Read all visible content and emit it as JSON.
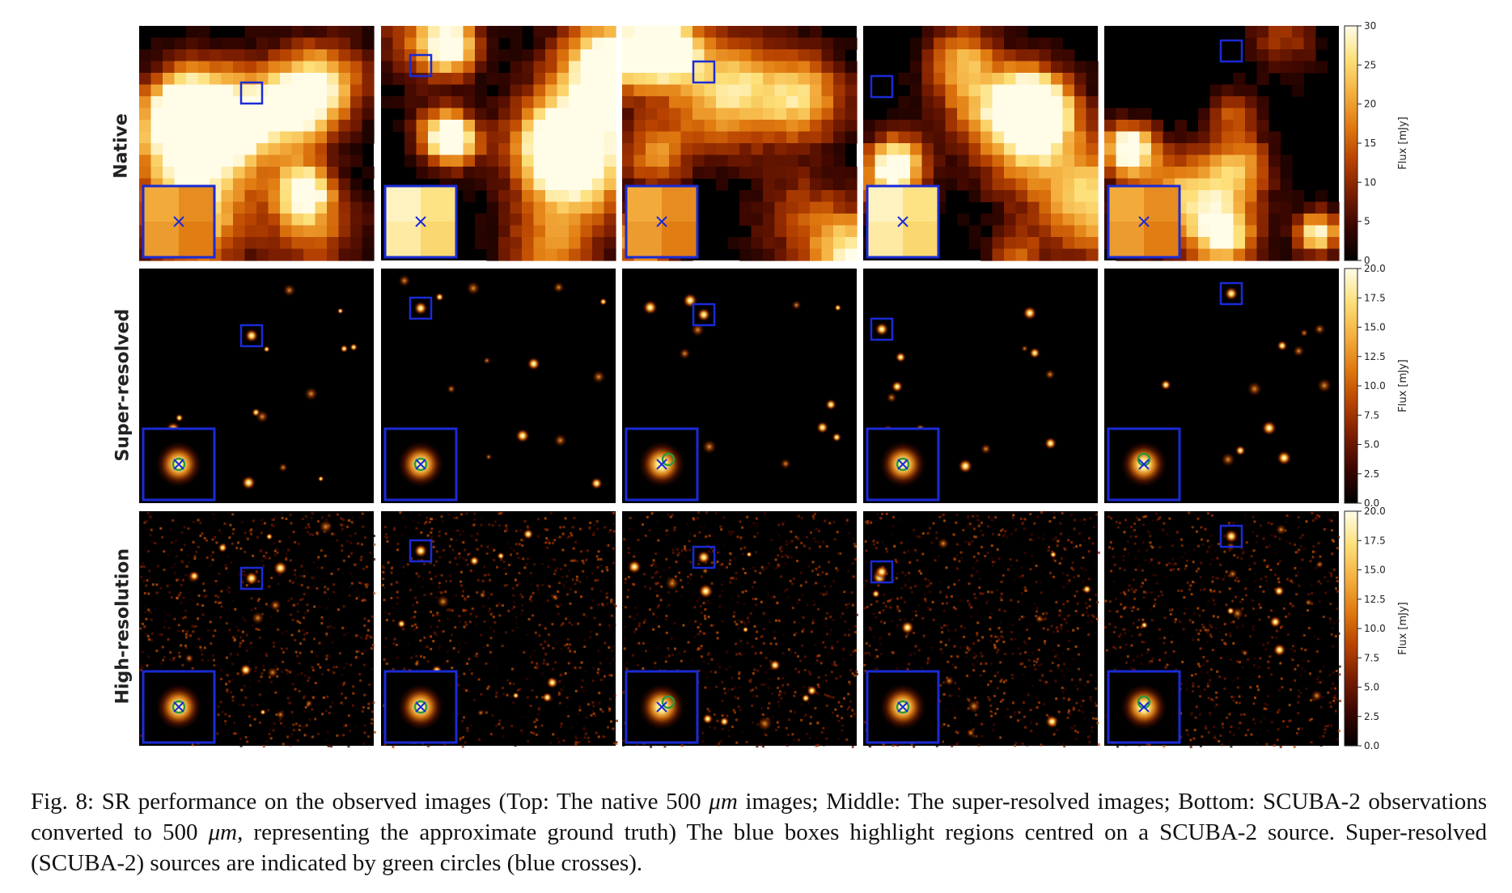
{
  "figure": {
    "row_labels": [
      "Native",
      "Super-resolved",
      "High-resolution"
    ],
    "colorbars": [
      {
        "label": "Flux [mJy]",
        "ticks": [
          "0",
          "5",
          "10",
          "15",
          "20",
          "25",
          "30"
        ],
        "max": 30
      },
      {
        "label": "Flux [mJy]",
        "ticks": [
          "0.0",
          "2.5",
          "5.0",
          "7.5",
          "10.0",
          "12.5",
          "15.0",
          "17.5",
          "20.0"
        ],
        "max": 20
      },
      {
        "label": "Flux [mJy]",
        "ticks": [
          "0.0",
          "2.5",
          "5.0",
          "7.5",
          "10.0",
          "12.5",
          "15.0",
          "17.5",
          "20.0"
        ],
        "max": 20
      }
    ],
    "colormap": [
      "#000000",
      "#3a0600",
      "#7a1d00",
      "#b84300",
      "#e07a10",
      "#f4b040",
      "#fde07a",
      "#fffce8"
    ],
    "marker_colors": {
      "box": "#1a2bd6",
      "cross": "#1a2bd6",
      "circle": "#2e9a3a"
    },
    "columns": 5
  },
  "caption": {
    "fig_label": "Fig. 8:",
    "part1": "SR performance on the observed images (Top: The native 500",
    "unit1": "μm",
    "part2": "images; Middle: The super-resolved images; Bottom: SCUBA-2 observations converted to 500",
    "unit2": "μm",
    "part3": ", representing the approximate ground truth) The blue boxes highlight regions centred on a SCUBA-2 source. Super-resolved (SCUBA-2) sources are indicated by green circles (blue crosses)."
  }
}
